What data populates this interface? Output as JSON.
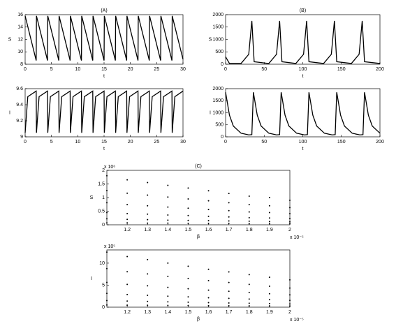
{
  "chart_data": [
    {
      "type": "line",
      "title": "(A)",
      "xlabel": "t",
      "ylabel": "S",
      "color": "#000000",
      "x": [
        0,
        2.1,
        2.15,
        4.25,
        4.3,
        6.4,
        6.45,
        8.55,
        8.6,
        10.7,
        10.75,
        12.85,
        12.9,
        15,
        15.05,
        17.15,
        17.2,
        19.3,
        19.35,
        21.45,
        21.5,
        23.6,
        23.65,
        25.75,
        25.8,
        27.9,
        27.95,
        30
      ],
      "values": [
        15.8,
        8.6,
        15.8,
        8.6,
        15.8,
        8.6,
        15.8,
        8.6,
        15.8,
        8.6,
        15.8,
        8.6,
        15.8,
        8.6,
        15.8,
        8.6,
        15.8,
        8.6,
        15.8,
        8.6,
        15.8,
        8.6,
        15.8,
        8.6,
        15.8,
        8.6,
        15.8,
        8.8
      ],
      "xlim": [
        0,
        30
      ],
      "ylim": [
        8,
        16
      ],
      "xticks": [
        0,
        5,
        10,
        15,
        20,
        25,
        30
      ],
      "yticks": [
        8,
        10,
        12,
        14,
        16
      ]
    },
    {
      "type": "line",
      "title": "(B)",
      "xlabel": "t",
      "ylabel": "S",
      "color": "#000000",
      "x": [
        0,
        5,
        20,
        30,
        34,
        37,
        56,
        66,
        70,
        73,
        91,
        101,
        105,
        108,
        127,
        137,
        141,
        144,
        163,
        173,
        177,
        180,
        200
      ],
      "values": [
        300,
        30,
        30,
        400,
        1750,
        100,
        30,
        400,
        1750,
        100,
        30,
        400,
        1750,
        100,
        30,
        400,
        1750,
        100,
        30,
        400,
        1750,
        100,
        30
      ],
      "xlim": [
        0,
        200
      ],
      "ylim": [
        0,
        2000
      ],
      "xticks": [
        0,
        50,
        100,
        150,
        200
      ],
      "yticks": [
        0,
        500,
        1000,
        1500,
        2000
      ]
    },
    {
      "type": "line",
      "xlabel": "t",
      "ylabel": "I",
      "color": "#000000",
      "x": [
        0,
        0.5,
        2.1,
        2.15,
        2.65,
        4.25,
        4.3,
        4.8,
        6.4,
        6.45,
        6.95,
        8.55,
        8.6,
        9.1,
        10.7,
        10.75,
        11.25,
        12.85,
        12.9,
        13.4,
        15,
        15.05,
        15.55,
        17.15,
        17.2,
        17.7,
        19.3,
        19.35,
        19.85,
        21.45,
        21.5,
        22,
        23.6,
        23.65,
        24.15,
        25.75,
        25.8,
        26.3,
        27.9,
        27.95,
        28.45,
        30
      ],
      "values": [
        9.05,
        9.5,
        9.57,
        9.05,
        9.5,
        9.57,
        9.05,
        9.5,
        9.57,
        9.05,
        9.5,
        9.57,
        9.05,
        9.5,
        9.57,
        9.05,
        9.5,
        9.57,
        9.05,
        9.5,
        9.57,
        9.05,
        9.5,
        9.57,
        9.05,
        9.5,
        9.57,
        9.05,
        9.5,
        9.57,
        9.05,
        9.5,
        9.57,
        9.05,
        9.5,
        9.57,
        9.05,
        9.5,
        9.57,
        9.05,
        9.5,
        9.57
      ],
      "xlim": [
        0,
        30
      ],
      "ylim": [
        9,
        9.6
      ],
      "xticks": [
        0,
        5,
        10,
        15,
        20,
        25,
        30
      ],
      "yticks": [
        9,
        9.2,
        9.4,
        9.6
      ]
    },
    {
      "type": "line",
      "xlabel": "t",
      "ylabel": "I",
      "color": "#000000",
      "x": [
        0,
        5,
        10,
        20,
        30,
        34,
        36,
        41,
        46,
        56,
        66,
        70,
        72,
        77,
        82,
        92,
        102,
        106,
        108,
        113,
        118,
        128,
        138,
        142,
        144,
        149,
        154,
        164,
        174,
        178,
        180,
        185,
        190,
        200
      ],
      "values": [
        1850,
        900,
        450,
        150,
        80,
        90,
        1850,
        900,
        450,
        150,
        80,
        90,
        1850,
        900,
        450,
        150,
        80,
        90,
        1850,
        900,
        450,
        150,
        80,
        90,
        1850,
        900,
        450,
        150,
        80,
        90,
        1850,
        900,
        450,
        150
      ],
      "xlim": [
        0,
        200
      ],
      "ylim": [
        0,
        2000
      ],
      "xticks": [
        0,
        50,
        100,
        150,
        200
      ],
      "yticks": [
        0,
        500,
        1000,
        1500,
        2000
      ]
    },
    {
      "type": "scatter",
      "title": "(C)",
      "xlabel": "β",
      "ylabel": "S",
      "y_multiplier": "x 10⁶",
      "x_multiplier": "x 10⁻⁵",
      "color": "#000000",
      "x": [
        1.1,
        1.1,
        1.1,
        1.1,
        1.1,
        1.1,
        1.2,
        1.2,
        1.2,
        1.2,
        1.2,
        1.2,
        1.3,
        1.3,
        1.3,
        1.3,
        1.3,
        1.3,
        1.4,
        1.4,
        1.4,
        1.4,
        1.4,
        1.4,
        1.5,
        1.5,
        1.5,
        1.5,
        1.5,
        1.5,
        1.6,
        1.6,
        1.6,
        1.6,
        1.6,
        1.6,
        1.7,
        1.7,
        1.7,
        1.7,
        1.7,
        1.7,
        1.8,
        1.8,
        1.8,
        1.8,
        1.8,
        1.8,
        1.9,
        1.9,
        1.9,
        1.9,
        1.9,
        1.9,
        2,
        2,
        2,
        2,
        2,
        2
      ],
      "values": [
        1.8,
        1.26,
        0.81,
        0.45,
        0.22,
        0.07,
        1.65,
        1.16,
        0.74,
        0.41,
        0.2,
        0.07,
        1.55,
        1.09,
        0.7,
        0.39,
        0.19,
        0.06,
        1.45,
        1.02,
        0.65,
        0.36,
        0.17,
        0.06,
        1.35,
        0.95,
        0.61,
        0.34,
        0.16,
        0.05,
        1.25,
        0.88,
        0.56,
        0.31,
        0.15,
        0.05,
        1.15,
        0.81,
        0.52,
        0.29,
        0.14,
        0.05,
        1.05,
        0.74,
        0.47,
        0.26,
        0.13,
        0.04,
        1,
        0.7,
        0.45,
        0.25,
        0.12,
        0.04,
        0.9,
        0.63,
        0.41,
        0.23,
        0.11,
        0.04
      ],
      "xlim": [
        1.1,
        2
      ],
      "ylim": [
        0,
        2
      ],
      "xticks": [
        1.2,
        1.3,
        1.4,
        1.5,
        1.6,
        1.7,
        1.8,
        1.9,
        2
      ],
      "yticks": [
        0,
        0.5,
        1,
        1.5,
        2
      ]
    },
    {
      "type": "scatter",
      "xlabel": "β",
      "ylabel": "I",
      "y_multiplier": "x 10⁵",
      "x_multiplier": "x 10⁻⁵",
      "color": "#000000",
      "x": [
        1.1,
        1.1,
        1.1,
        1.1,
        1.1,
        1.1,
        1.2,
        1.2,
        1.2,
        1.2,
        1.2,
        1.2,
        1.3,
        1.3,
        1.3,
        1.3,
        1.3,
        1.3,
        1.4,
        1.4,
        1.4,
        1.4,
        1.4,
        1.4,
        1.5,
        1.5,
        1.5,
        1.5,
        1.5,
        1.5,
        1.6,
        1.6,
        1.6,
        1.6,
        1.6,
        1.6,
        1.7,
        1.7,
        1.7,
        1.7,
        1.7,
        1.7,
        1.8,
        1.8,
        1.8,
        1.8,
        1.8,
        1.8,
        1.9,
        1.9,
        1.9,
        1.9,
        1.9,
        1.9,
        2,
        2,
        2,
        2,
        2,
        2
      ],
      "values": [
        12.5,
        8.75,
        5.63,
        3.13,
        1.5,
        0.5,
        11.5,
        8.05,
        5.18,
        2.88,
        1.38,
        0.46,
        10.8,
        7.56,
        4.86,
        2.7,
        1.3,
        0.43,
        10,
        7,
        4.5,
        2.5,
        1.2,
        0.4,
        9.3,
        6.51,
        4.19,
        2.33,
        1.12,
        0.37,
        8.6,
        6.02,
        3.87,
        2.15,
        1.03,
        0.34,
        8,
        5.6,
        3.6,
        2,
        0.96,
        0.32,
        7.4,
        5.18,
        3.33,
        1.85,
        0.89,
        0.3,
        6.8,
        4.76,
        3.06,
        1.7,
        0.82,
        0.27,
        6.2,
        4.34,
        2.79,
        1.55,
        0.74,
        0.25
      ],
      "xlim": [
        1.1,
        2
      ],
      "ylim": [
        0,
        13
      ],
      "xticks": [
        1.2,
        1.3,
        1.4,
        1.5,
        1.6,
        1.7,
        1.8,
        1.9,
        2
      ],
      "yticks": [
        0,
        5,
        10
      ]
    }
  ]
}
